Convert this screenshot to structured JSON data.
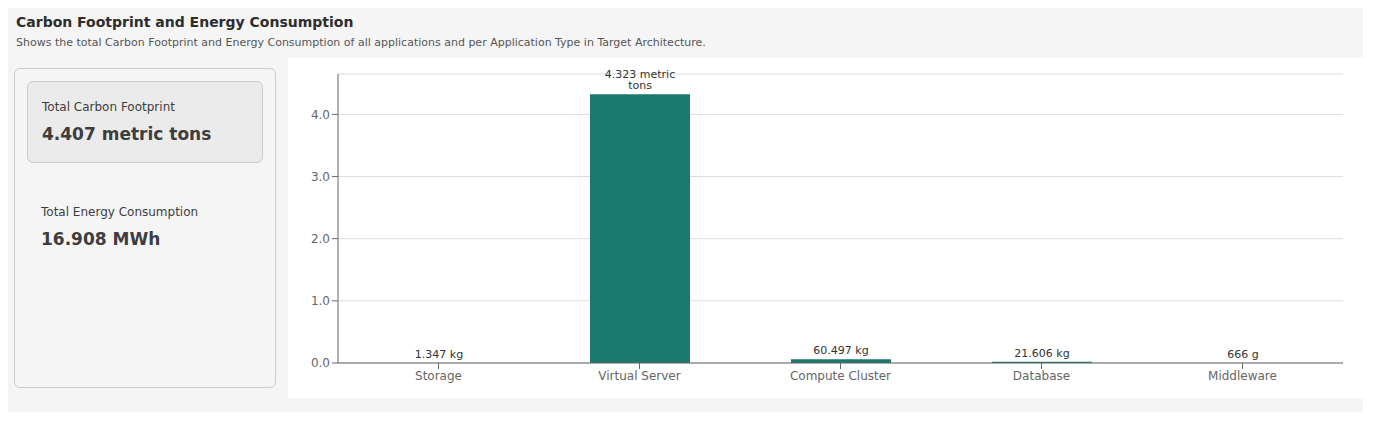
{
  "chart_data": {
    "type": "bar",
    "title": "Carbon Footprint and Energy Consumption",
    "subtitle": "Shows the total Carbon Footprint and Energy Consumption of all applications and per Application Type in Target Architecture.",
    "annotations": [
      "Total Carbon Footprint",
      "4.407 metric tons",
      "Total Energy Consumption",
      "16.908 MWh"
    ],
    "categories": [
      "Storage",
      "Virtual Server",
      "Compute Cluster",
      "Database",
      "Middleware"
    ],
    "values": [
      0.001347,
      4.323,
      0.060497,
      0.021606,
      0.000666
    ],
    "value_labels": [
      "1.347 kg",
      "4.323 metric tons",
      "60.497 kg",
      "21.606 kg",
      "666 g"
    ],
    "data_labels": true,
    "color": "#1a7a6e",
    "ylim": [
      0,
      4.65
    ],
    "yticks": [
      {
        "value": 0,
        "label": "0.0"
      },
      {
        "value": 1,
        "label": "1.0"
      },
      {
        "value": 2,
        "label": "2.0"
      },
      {
        "value": 3,
        "label": "3.0"
      },
      {
        "value": 4,
        "label": "4.0"
      }
    ],
    "grid": true
  }
}
